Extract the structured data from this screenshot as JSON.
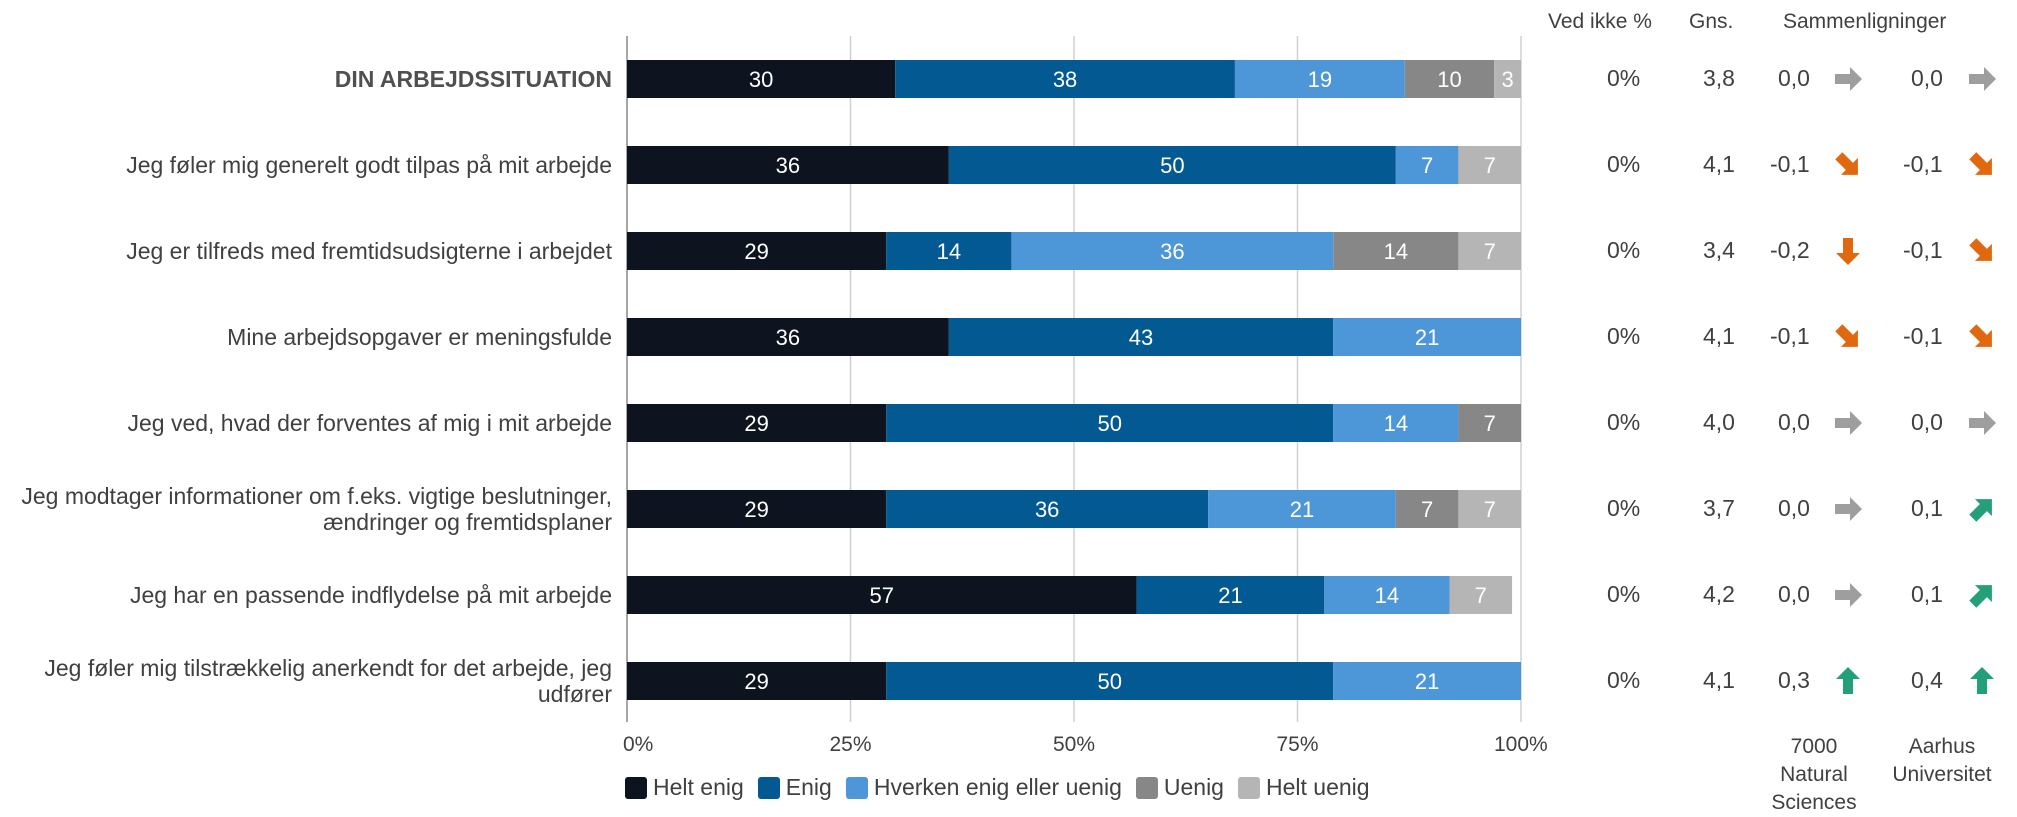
{
  "columns": {
    "ved_ikke": "Ved ikke %",
    "gns": "Gns.",
    "sammenligninger": "Sammenligninger",
    "comp1_line1": "7000",
    "comp1_line2": "Natural",
    "comp1_line3": "Sciences",
    "comp2_line1": "Aarhus",
    "comp2_line2": "Universitet"
  },
  "colors": {
    "helt_enig": "#0d1420",
    "enig": "#035a92",
    "hverken": "#4d96d8",
    "uenig": "#878787",
    "helt_uenig": "#b5b5b5",
    "arrow_neutral": "#9e9e9e",
    "arrow_down": "#e0680e",
    "arrow_up": "#23a07a"
  },
  "chart_data": {
    "type": "bar",
    "orientation": "horizontal-stacked-100",
    "xlim": [
      0,
      100
    ],
    "xticks": [
      "0%",
      "25%",
      "50%",
      "75%",
      "100%"
    ],
    "legend_position": "bottom",
    "series": [
      {
        "name": "Helt enig",
        "color": "#0d1420",
        "values": [
          30,
          36,
          29,
          36,
          29,
          29,
          57,
          29
        ]
      },
      {
        "name": "Enig",
        "color": "#035a92",
        "values": [
          38,
          50,
          14,
          43,
          50,
          36,
          21,
          50
        ]
      },
      {
        "name": "Hverken enig eller uenig",
        "color": "#4d96d8",
        "values": [
          19,
          7,
          36,
          21,
          14,
          21,
          14,
          21
        ]
      },
      {
        "name": "Uenig",
        "color": "#878787",
        "values": [
          10,
          0,
          14,
          0,
          7,
          7,
          0,
          0
        ]
      },
      {
        "name": "Helt uenig",
        "color": "#b5b5b5",
        "values": [
          3,
          7,
          7,
          0,
          0,
          7,
          7,
          0
        ]
      }
    ],
    "categories": [
      {
        "label": "DIN ARBEJDSSITUATION",
        "bold": true,
        "ved_ikke": "0%",
        "gns": "3,8",
        "comp1": "0,0",
        "comp1_dir": "right",
        "comp2": "0,0",
        "comp2_dir": "right"
      },
      {
        "label": "Jeg føler mig generelt godt tilpas på mit arbejde",
        "ved_ikke": "0%",
        "gns": "4,1",
        "comp1": "-0,1",
        "comp1_dir": "down-right",
        "comp2": "-0,1",
        "comp2_dir": "down-right"
      },
      {
        "label": "Jeg er tilfreds med fremtidsudsigterne i arbejdet",
        "ved_ikke": "0%",
        "gns": "3,4",
        "comp1": "-0,2",
        "comp1_dir": "down",
        "comp2": "-0,1",
        "comp2_dir": "down-right"
      },
      {
        "label": "Mine arbejdsopgaver er meningsfulde",
        "ved_ikke": "0%",
        "gns": "4,1",
        "comp1": "-0,1",
        "comp1_dir": "down-right",
        "comp2": "-0,1",
        "comp2_dir": "down-right"
      },
      {
        "label": "Jeg ved, hvad der forventes af mig i mit arbejde",
        "ved_ikke": "0%",
        "gns": "4,0",
        "comp1": "0,0",
        "comp1_dir": "right",
        "comp2": "0,0",
        "comp2_dir": "right"
      },
      {
        "label": "Jeg modtager informationer om f.eks. vigtige beslutninger, ændringer og fremtidsplaner",
        "ved_ikke": "0%",
        "gns": "3,7",
        "comp1": "0,0",
        "comp1_dir": "right",
        "comp2": "0,1",
        "comp2_dir": "up-right"
      },
      {
        "label": "Jeg har en passende indflydelse på mit arbejde",
        "ved_ikke": "0%",
        "gns": "4,2",
        "comp1": "0,0",
        "comp1_dir": "right",
        "comp2": "0,1",
        "comp2_dir": "up-right"
      },
      {
        "label": "Jeg føler mig tilstrækkelig anerkendt for det arbejde, jeg udfører",
        "ved_ikke": "0%",
        "gns": "4,1",
        "comp1": "0,3",
        "comp1_dir": "up",
        "comp2": "0,4",
        "comp2_dir": "up"
      }
    ]
  }
}
